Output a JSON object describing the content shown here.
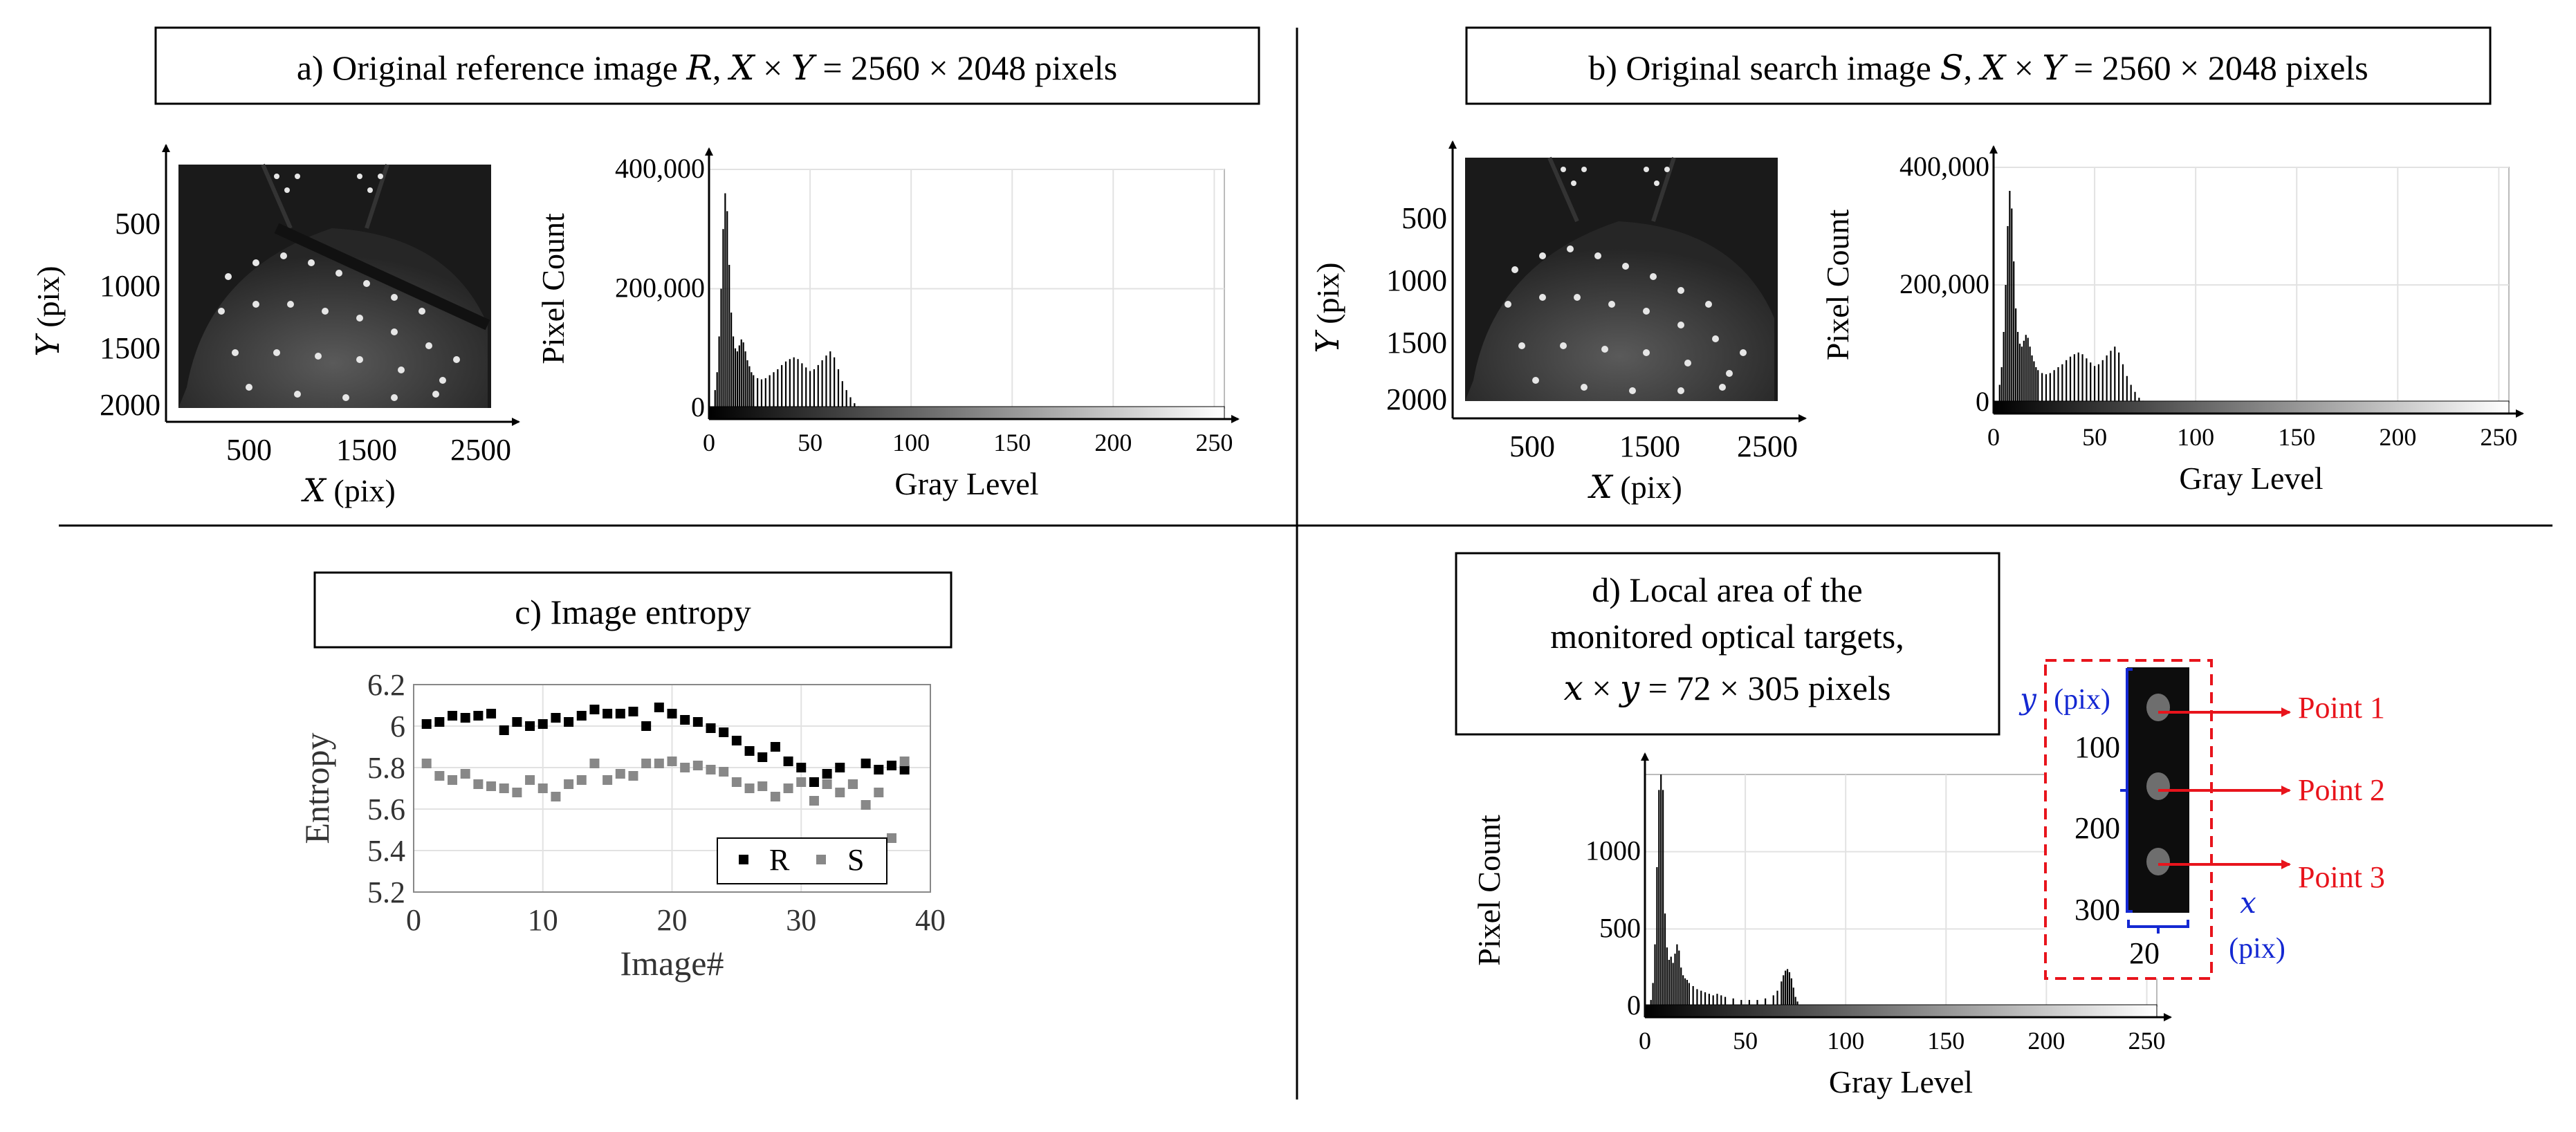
{
  "colors": {
    "text": "#000000",
    "series_R": "#000000",
    "series_S": "#888888",
    "annotation_red": "#e8141c",
    "annotation_blue": "#1428d2",
    "panel_bg": "#ffffff"
  },
  "panel_a": {
    "title": "a) Original reference image 𝑅, 𝑋 × 𝑌 = 2560 × 2048 pixels",
    "ylabel": "𝑌 (pix)",
    "xlabel": "𝑋 (pix)",
    "yticks": [
      "500",
      "1000",
      "1500",
      "2000"
    ],
    "xticks": [
      "500",
      "1500",
      "2500"
    ]
  },
  "panel_b": {
    "title": "b) Original search image 𝑆,  𝑋 × 𝑌 = 2560 × 2048 pixels",
    "ylabel": "𝑌 (pix)",
    "xlabel": "𝑋 (pix)",
    "yticks": [
      "500",
      "1000",
      "1500",
      "2000"
    ],
    "xticks": [
      "500",
      "1500",
      "2500"
    ]
  },
  "panel_c": {
    "title": "c) Image entropy"
  },
  "panel_d": {
    "title_lines": [
      "d) Local area of the",
      "monitored optical targets,",
      "𝑥 × 𝑦 = 72 × 305 pixels"
    ],
    "inset": {
      "ylabel_var": "𝑦",
      "ylabel_unit": "(pix)",
      "yticks": [
        "100",
        "200",
        "300"
      ],
      "xtick": "20",
      "xlabel_var": "𝑥",
      "xlabel_unit": "(pix)",
      "points": [
        "Point 1",
        "Point 2",
        "Point 3"
      ]
    }
  },
  "chart_data": [
    {
      "type": "bar",
      "id": "histogram_reference",
      "title": "",
      "xlabel": "Gray Level",
      "ylabel": "Pixel Count",
      "xlim": [
        0,
        255
      ],
      "ylim": [
        0,
        400000
      ],
      "xticks": [
        0,
        50,
        100,
        150,
        200,
        250
      ],
      "yticks": [
        0,
        200000,
        400000
      ],
      "ytick_labels": [
        "0",
        "200,000",
        "400,000"
      ],
      "x": [
        3,
        4,
        5,
        6,
        7,
        8,
        9,
        10,
        11,
        12,
        13,
        14,
        15,
        16,
        17,
        18,
        19,
        20,
        21,
        22,
        24,
        26,
        28,
        30,
        32,
        34,
        36,
        38,
        40,
        42,
        44,
        46,
        48,
        50,
        52,
        54,
        56,
        58,
        60,
        62,
        64,
        66,
        68,
        70,
        72,
        74
      ],
      "values": [
        30000,
        60000,
        120000,
        200000,
        300000,
        360000,
        330000,
        240000,
        160000,
        120000,
        100000,
        95000,
        105000,
        115000,
        110000,
        95000,
        80000,
        70000,
        60000,
        55000,
        50000,
        48000,
        50000,
        55000,
        60000,
        65000,
        72000,
        78000,
        82000,
        85000,
        82000,
        75000,
        68000,
        62000,
        65000,
        72000,
        80000,
        88000,
        95000,
        85000,
        65000,
        45000,
        30000,
        18000,
        8000,
        3000
      ]
    },
    {
      "type": "bar",
      "id": "histogram_search",
      "title": "",
      "xlabel": "Gray Level",
      "ylabel": "Pixel Count",
      "xlim": [
        0,
        255
      ],
      "ylim": [
        0,
        400000
      ],
      "xticks": [
        0,
        50,
        100,
        150,
        200,
        250
      ],
      "yticks": [
        0,
        200000,
        400000
      ],
      "ytick_labels": [
        "0",
        "200,000",
        "400,000"
      ],
      "x": [
        3,
        4,
        5,
        6,
        7,
        8,
        9,
        10,
        11,
        12,
        13,
        14,
        15,
        16,
        17,
        18,
        19,
        20,
        21,
        22,
        24,
        26,
        28,
        30,
        32,
        34,
        36,
        38,
        40,
        42,
        44,
        46,
        48,
        50,
        52,
        54,
        56,
        58,
        60,
        62,
        64,
        66,
        68,
        70,
        72,
        74
      ],
      "values": [
        30000,
        60000,
        120000,
        200000,
        300000,
        360000,
        330000,
        240000,
        160000,
        120000,
        100000,
        95000,
        105000,
        115000,
        110000,
        95000,
        80000,
        70000,
        60000,
        55000,
        50000,
        48000,
        50000,
        55000,
        60000,
        65000,
        72000,
        78000,
        82000,
        85000,
        82000,
        75000,
        68000,
        62000,
        65000,
        72000,
        80000,
        88000,
        95000,
        85000,
        65000,
        45000,
        30000,
        18000,
        8000,
        3000
      ]
    },
    {
      "type": "scatter",
      "id": "image_entropy",
      "title": "",
      "xlabel": "Image#",
      "ylabel": "Entropy",
      "xlim": [
        0,
        40
      ],
      "ylim": [
        5.2,
        6.2
      ],
      "xticks": [
        0,
        10,
        20,
        30,
        40
      ],
      "yticks": [
        5.2,
        5.4,
        5.6,
        5.8,
        6,
        6.2
      ],
      "ytick_labels": [
        "5.2",
        "5.4",
        "5.6",
        "5.8",
        "6",
        "6.2"
      ],
      "legend_position": "bottom-right",
      "series": [
        {
          "name": "R",
          "x": [
            1,
            2,
            3,
            4,
            5,
            6,
            7,
            8,
            9,
            10,
            11,
            12,
            13,
            14,
            15,
            16,
            17,
            18,
            19,
            20,
            21,
            22,
            23,
            24,
            25,
            26,
            27,
            28,
            29,
            30,
            31,
            32,
            33,
            34,
            35,
            36,
            37,
            38
          ],
          "values": [
            6.01,
            6.02,
            6.05,
            6.04,
            6.05,
            6.06,
            5.98,
            6.02,
            6.0,
            6.01,
            6.04,
            6.02,
            6.05,
            6.08,
            6.06,
            6.06,
            6.07,
            6.0,
            6.09,
            6.06,
            6.03,
            6.02,
            5.99,
            5.97,
            5.93,
            5.88,
            5.85,
            5.9,
            5.83,
            5.8,
            5.73,
            5.77,
            5.8,
            5.72,
            5.82,
            5.79,
            5.81,
            5.79
          ]
        },
        {
          "name": "S",
          "x": [
            1,
            2,
            3,
            4,
            5,
            6,
            7,
            8,
            9,
            10,
            11,
            12,
            13,
            14,
            15,
            16,
            17,
            18,
            19,
            20,
            21,
            22,
            23,
            24,
            25,
            26,
            27,
            28,
            29,
            30,
            31,
            32,
            33,
            34,
            35,
            36,
            37,
            38
          ],
          "values": [
            5.82,
            5.76,
            5.74,
            5.77,
            5.72,
            5.71,
            5.7,
            5.68,
            5.74,
            5.7,
            5.66,
            5.72,
            5.74,
            5.82,
            5.74,
            5.77,
            5.76,
            5.82,
            5.82,
            5.83,
            5.8,
            5.81,
            5.79,
            5.78,
            5.73,
            5.7,
            5.71,
            5.66,
            5.7,
            5.73,
            5.64,
            5.72,
            5.68,
            5.72,
            5.62,
            5.68,
            5.46,
            5.83
          ]
        }
      ]
    },
    {
      "type": "bar",
      "id": "histogram_local",
      "title": "",
      "xlabel": "Gray Level",
      "ylabel": "Pixel Count",
      "xlim": [
        0,
        255
      ],
      "ylim": [
        0,
        1500
      ],
      "xticks": [
        0,
        50,
        100,
        150,
        200,
        250
      ],
      "yticks": [
        0,
        500,
        1000
      ],
      "ytick_labels": [
        "0",
        "500",
        "1000"
      ],
      "x": [
        3,
        4,
        5,
        6,
        7,
        8,
        9,
        10,
        11,
        12,
        13,
        14,
        15,
        16,
        17,
        18,
        19,
        20,
        21,
        22,
        24,
        26,
        28,
        30,
        32,
        34,
        36,
        38,
        40,
        44,
        48,
        52,
        56,
        60,
        64,
        66,
        68,
        69,
        70,
        71,
        72,
        73,
        74,
        75,
        76,
        78
      ],
      "values": [
        40,
        150,
        400,
        900,
        1400,
        1500,
        1400,
        600,
        380,
        300,
        320,
        280,
        340,
        400,
        360,
        250,
        200,
        180,
        170,
        150,
        130,
        110,
        100,
        90,
        80,
        70,
        80,
        70,
        60,
        50,
        40,
        40,
        40,
        50,
        70,
        100,
        160,
        200,
        230,
        240,
        220,
        180,
        120,
        60,
        30,
        10
      ]
    }
  ]
}
